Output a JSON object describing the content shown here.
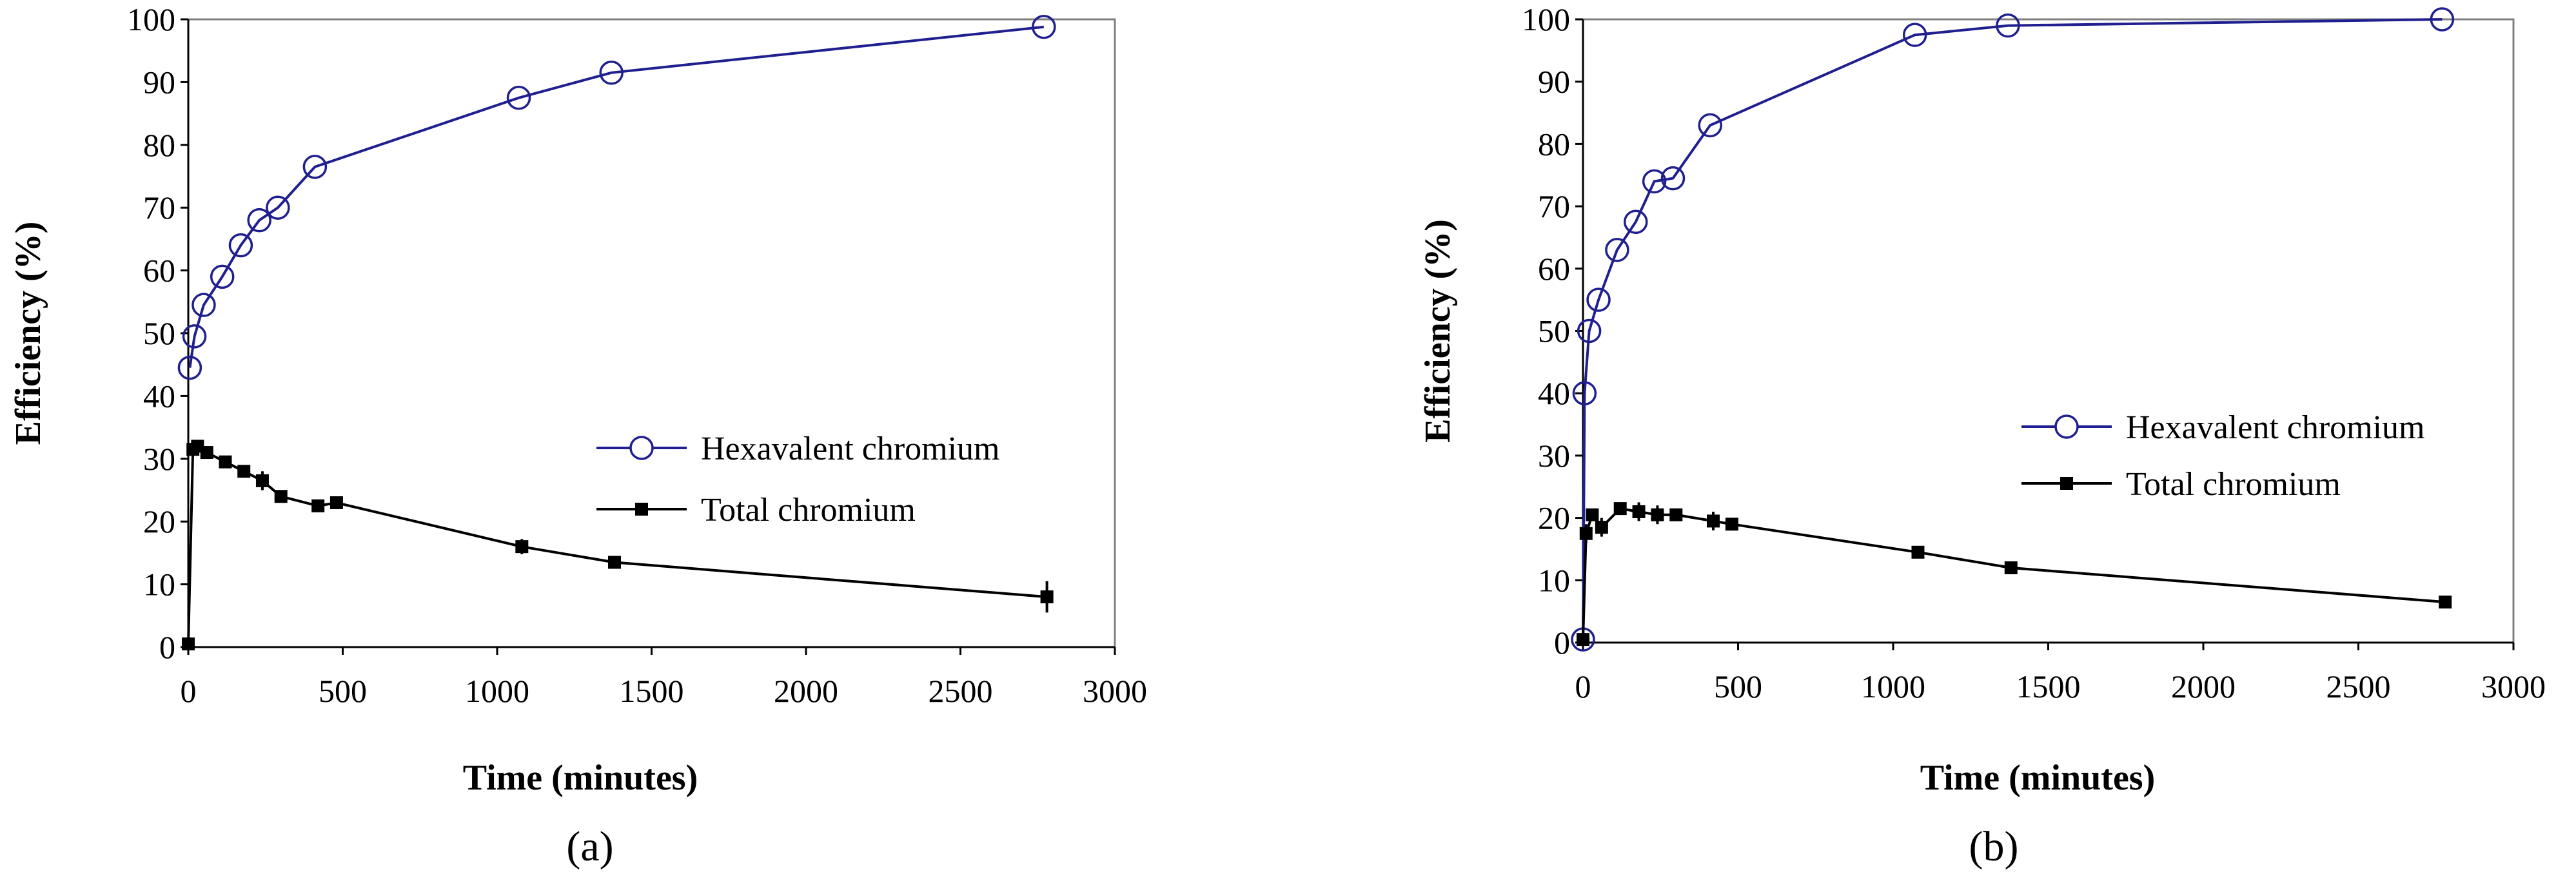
{
  "chart_data": [
    {
      "type": "line",
      "panel_label": "(a)",
      "title": "",
      "xlabel": "Time (minutes)",
      "ylabel": "Efficiency (%)",
      "xlim": [
        0,
        3000
      ],
      "ylim": [
        0,
        100
      ],
      "xticks": [
        "0",
        "500",
        "1000",
        "1500",
        "2000",
        "2500",
        "3000"
      ],
      "yticks": [
        "0",
        "10",
        "20",
        "30",
        "40",
        "50",
        "60",
        "70",
        "80",
        "90",
        "100"
      ],
      "grid": false,
      "legend_position": "right-center",
      "series": [
        {
          "name": "Hexavalent chromium",
          "color": "#1f1f8f",
          "marker": "open-circle",
          "x": [
            5,
            20,
            50,
            110,
            170,
            230,
            290,
            410,
            1070,
            1370,
            2770
          ],
          "y": [
            44.5,
            49.5,
            54.5,
            59,
            64,
            68,
            70,
            76.5,
            87.5,
            91.5,
            98.8
          ]
        },
        {
          "name": "Total chromium",
          "color": "#000000",
          "marker": "filled-square",
          "x": [
            0,
            15,
            30,
            60,
            120,
            180,
            240,
            300,
            420,
            480,
            1080,
            1380,
            2780
          ],
          "y": [
            0.5,
            31.5,
            32,
            31,
            29.5,
            28,
            26.5,
            24,
            22.5,
            23,
            16,
            13.5,
            8
          ],
          "error": [
            0,
            0,
            0,
            0,
            0,
            0,
            1.5,
            0,
            0,
            0,
            1.2,
            0,
            2.5
          ]
        }
      ]
    },
    {
      "type": "line",
      "panel_label": "(b)",
      "title": "",
      "xlabel": "Time (minutes)",
      "ylabel": "Efficiency (%)",
      "xlim": [
        0,
        3000
      ],
      "ylim": [
        0,
        100
      ],
      "xticks": [
        "0",
        "500",
        "1000",
        "1500",
        "2000",
        "2500",
        "3000"
      ],
      "yticks": [
        "0",
        "10",
        "20",
        "30",
        "40",
        "50",
        "60",
        "70",
        "80",
        "90",
        "100"
      ],
      "grid": false,
      "legend_position": "right-center",
      "series": [
        {
          "name": "Hexavalent chromium",
          "color": "#1f1f8f",
          "marker": "open-circle",
          "x": [
            0,
            5,
            20,
            50,
            110,
            170,
            230,
            290,
            410,
            1070,
            1370,
            2770
          ],
          "y": [
            0.5,
            40,
            50,
            55,
            63,
            67.5,
            74,
            74.5,
            83,
            97.5,
            99,
            100
          ]
        },
        {
          "name": "Total chromium",
          "color": "#000000",
          "marker": "filled-square",
          "x": [
            0,
            10,
            30,
            60,
            120,
            180,
            240,
            300,
            420,
            480,
            1080,
            1380,
            2780
          ],
          "y": [
            0.5,
            17.5,
            20.5,
            18.5,
            21.5,
            21,
            20.5,
            20.5,
            19.5,
            19,
            14.5,
            12,
            6.5
          ],
          "error": [
            0,
            1.5,
            0,
            1.5,
            0,
            1.5,
            1.5,
            0,
            1.5,
            0,
            0,
            0,
            0
          ]
        }
      ]
    }
  ]
}
